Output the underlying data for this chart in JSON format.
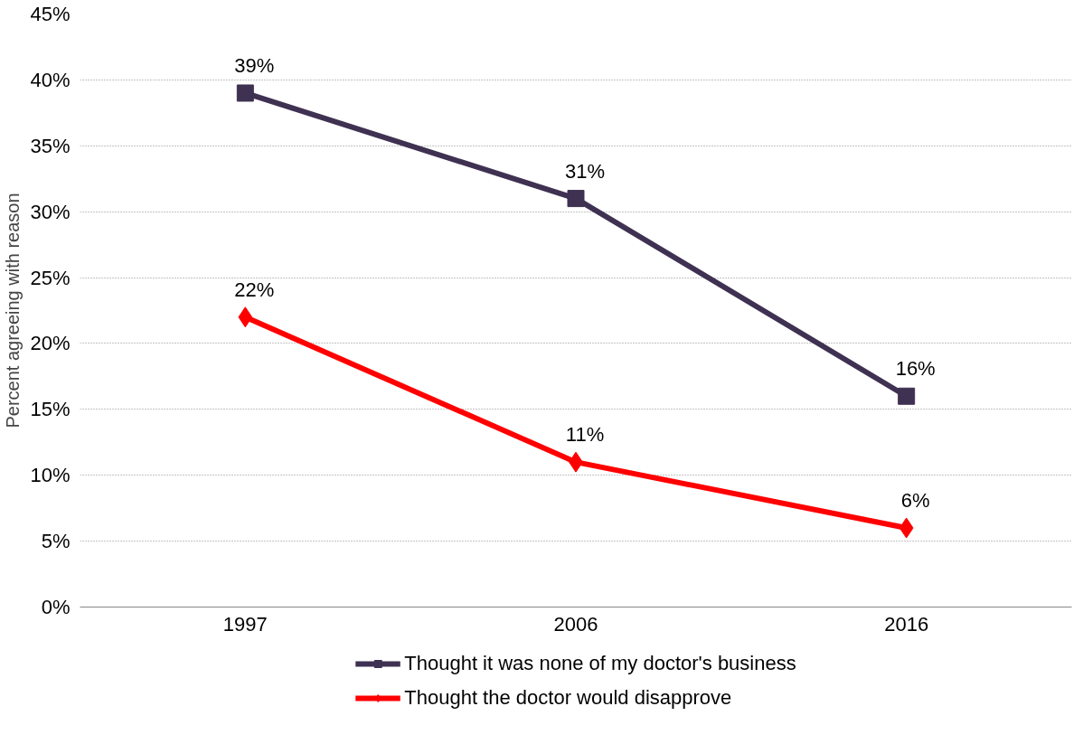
{
  "chart_data": {
    "type": "line",
    "ylabel": "Percent agreeing with reason",
    "categories": [
      "1997",
      "2006",
      "2016"
    ],
    "series": [
      {
        "name": "Thought it was none of my doctor's business",
        "color": "#3f3151",
        "marker": "square",
        "values": [
          39,
          31,
          16
        ],
        "value_labels": [
          "39%",
          "31%",
          "16%"
        ]
      },
      {
        "name": "Thought the doctor would disapprove",
        "color": "#ff0000",
        "marker": "diamond",
        "values": [
          22,
          11,
          6
        ],
        "value_labels": [
          "22%",
          "11%",
          "6%"
        ]
      }
    ],
    "ylim": [
      0,
      45
    ],
    "yticks": [
      {
        "value": 0,
        "label": "0%"
      },
      {
        "value": 5,
        "label": "5%"
      },
      {
        "value": 10,
        "label": "10%"
      },
      {
        "value": 15,
        "label": "15%"
      },
      {
        "value": 20,
        "label": "20%"
      },
      {
        "value": 25,
        "label": "25%"
      },
      {
        "value": 30,
        "label": "30%"
      },
      {
        "value": 35,
        "label": "35%"
      },
      {
        "value": 40,
        "label": "40%"
      },
      {
        "value": 45,
        "label": "45%"
      }
    ],
    "grid": "y",
    "legend": "bottom",
    "line_style": "solid"
  }
}
